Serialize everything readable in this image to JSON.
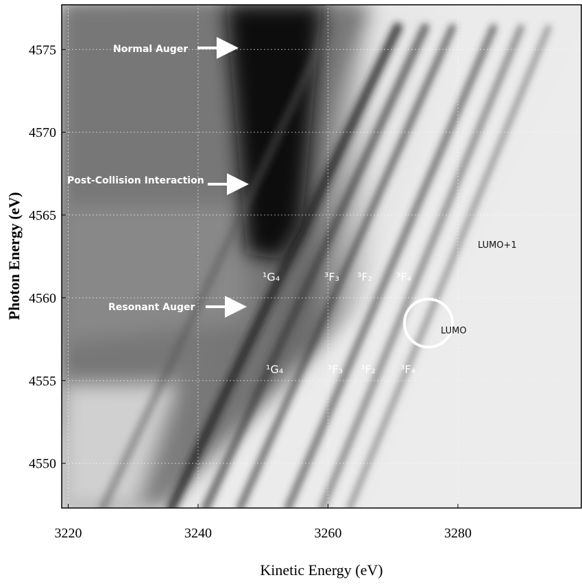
{
  "chart_data": {
    "type": "heatmap",
    "xlabel": "Kinetic Energy (eV)",
    "ylabel": "Photon Energy (eV)",
    "xlim": [
      3219,
      3299
    ],
    "xticks": [
      3220,
      3240,
      3260,
      3280
    ],
    "ylim": [
      4547.3,
      4577.7
    ],
    "yticks": [
      4550,
      4555,
      4560,
      4565,
      4570,
      4575
    ],
    "grid": true,
    "annotations": [
      "Normal Auger",
      "Post-Collision Interaction",
      "Resonant Auger",
      "LUMO+1",
      "LUMO",
      "¹G₄",
      "³F₃",
      "³F₂",
      "³F₄",
      "¹G₄",
      "³F₃",
      "³F₂",
      "³F₄"
    ]
  }
}
